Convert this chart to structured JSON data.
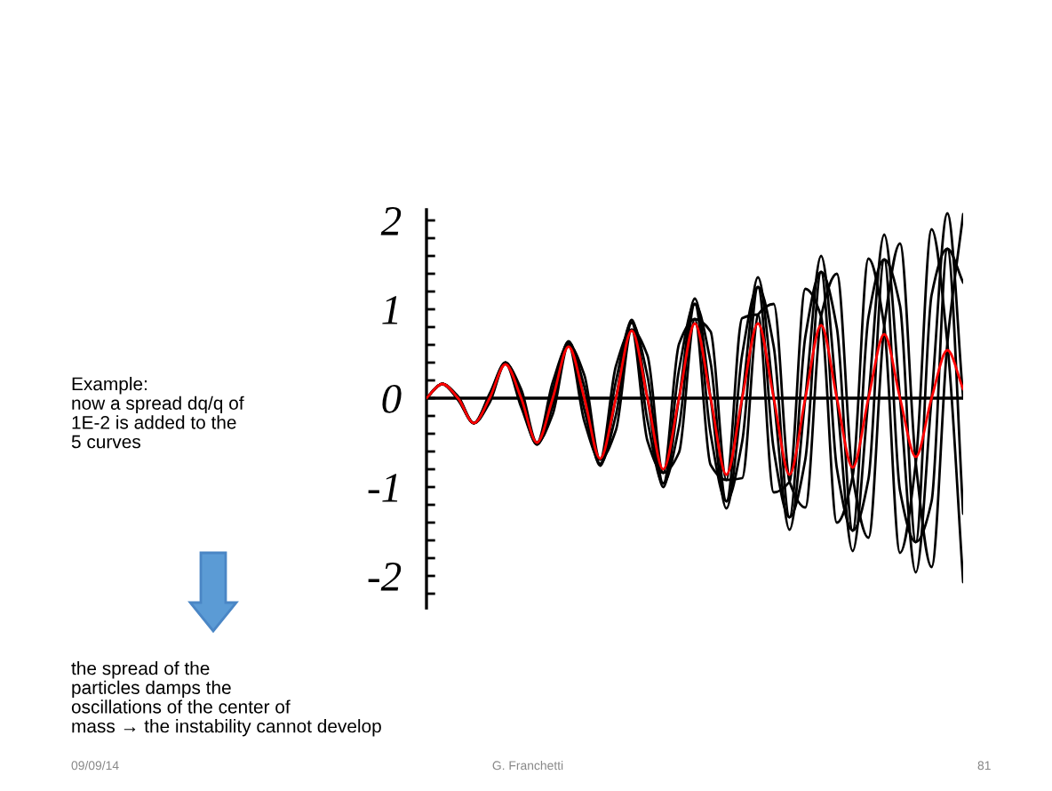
{
  "chart_data": {
    "type": "line",
    "categories": [
      null,
      null,
      null,
      null,
      null,
      null,
      null,
      null,
      null,
      null,
      null,
      null,
      null,
      null,
      null,
      null,
      null,
      null,
      null,
      null,
      null,
      null,
      null,
      null,
      null,
      null,
      null,
      null,
      null,
      null,
      null,
      null,
      null,
      null,
      null
    ],
    "series": [
      {
        "color": "#000000",
        "values": [
          0,
          0.16,
          0.02,
          -0.28,
          -0.05,
          0.39,
          0.1,
          -0.5,
          -0.18,
          0.6,
          0.26,
          -0.69,
          -0.36,
          0.77,
          0.48,
          -0.84,
          -0.61,
          0.89,
          0.75,
          -0.92,
          -0.9,
          0.94,
          1.06,
          -0.94,
          -1.23,
          0.92,
          1.4,
          -0.88,
          -1.57,
          0.81,
          1.74,
          -0.73,
          -1.9,
          0.62,
          2.07
        ]
      },
      {
        "color": "#000000",
        "values": [
          0,
          0.16,
          0.01,
          -0.28,
          -0.03,
          0.4,
          0.05,
          -0.52,
          -0.09,
          0.63,
          0.13,
          -0.74,
          -0.19,
          0.85,
          0.25,
          -0.96,
          -0.32,
          1.06,
          0.4,
          -1.16,
          -0.49,
          1.25,
          0.58,
          -1.34,
          -0.69,
          1.42,
          0.79,
          -1.49,
          -0.91,
          1.56,
          1.04,
          -1.62,
          -1.16,
          1.68,
          1.3
        ]
      },
      {
        "color": "#000000",
        "values": [
          0,
          0.16,
          0,
          -0.28,
          0,
          0.4,
          0,
          -0.52,
          0,
          0.64,
          0,
          -0.76,
          0,
          0.88,
          0,
          -1.0,
          0,
          1.12,
          0,
          -1.24,
          0,
          1.36,
          0,
          -1.48,
          0,
          1.6,
          0,
          -1.72,
          0,
          1.84,
          0,
          -1.96,
          0,
          2.08,
          0
        ]
      },
      {
        "color": "#000000",
        "values": [
          0,
          0.16,
          -0.01,
          -0.28,
          0.03,
          0.4,
          -0.05,
          -0.52,
          0.09,
          0.63,
          -0.13,
          -0.74,
          0.19,
          0.85,
          -0.25,
          -0.96,
          0.32,
          1.06,
          -0.4,
          -1.16,
          0.49,
          1.25,
          -0.58,
          -1.34,
          0.69,
          1.42,
          -0.79,
          -1.49,
          0.91,
          1.56,
          -1.04,
          -1.62,
          1.16,
          1.68,
          -1.3
        ]
      },
      {
        "color": "#000000",
        "values": [
          0,
          0.16,
          -0.02,
          -0.28,
          0.05,
          0.39,
          -0.1,
          -0.5,
          0.18,
          0.6,
          -0.26,
          -0.69,
          0.36,
          0.77,
          -0.48,
          -0.84,
          0.61,
          0.89,
          -0.75,
          -0.92,
          0.9,
          0.94,
          -1.06,
          -0.94,
          1.23,
          0.92,
          -1.4,
          -0.88,
          1.57,
          0.81,
          -1.74,
          -0.73,
          1.9,
          0.62,
          -2.07
        ]
      },
      {
        "color": "#ff0000",
        "values": [
          0,
          0.16,
          0,
          -0.28,
          0,
          0.38,
          0,
          -0.5,
          0,
          0.58,
          0,
          -0.68,
          0,
          0.76,
          0,
          -0.8,
          0,
          0.84,
          0,
          -0.86,
          0,
          0.84,
          0,
          -0.86,
          0,
          0.82,
          0,
          -0.78,
          0,
          0.72,
          0,
          -0.66,
          0,
          0.54,
          0.1
        ]
      }
    ],
    "ylim": [
      -2.36,
      2.12
    ],
    "yticks": [
      {
        "value": -2.2,
        "label": null
      },
      -2,
      {
        "value": -1.8,
        "label": null
      },
      {
        "value": -1.6,
        "label": null
      },
      {
        "value": -1.4,
        "label": null
      },
      {
        "value": -1.2,
        "label": null
      },
      -1,
      {
        "value": -0.8,
        "label": null
      },
      {
        "value": -0.6,
        "label": null
      },
      {
        "value": -0.4,
        "label": null
      },
      {
        "value": -0.2,
        "label": null
      },
      0,
      {
        "value": 0.2,
        "label": null
      },
      {
        "value": 0.4,
        "label": null
      },
      {
        "value": 0.6,
        "label": null
      },
      {
        "value": 0.8,
        "label": null
      },
      1,
      {
        "value": 1.2,
        "label": null
      },
      {
        "value": 1.4,
        "label": null
      },
      {
        "value": 1.6,
        "label": null
      },
      {
        "value": 1.8,
        "label": null
      },
      2
    ],
    "tick_labels": "y",
    "ref_lines": [
      {
        "axis": "y",
        "value": 0,
        "color": "#000000"
      }
    ],
    "annotations": [
      "Example:\nnow a spread dq/q of\n1E-2 is added to the\n5 curves",
      "the spread of the\nparticles damps the\noscillations of the center of\nmass → the instability cannot develop",
      "09/09/14",
      "G. Franchetti",
      "81"
    ]
  }
}
